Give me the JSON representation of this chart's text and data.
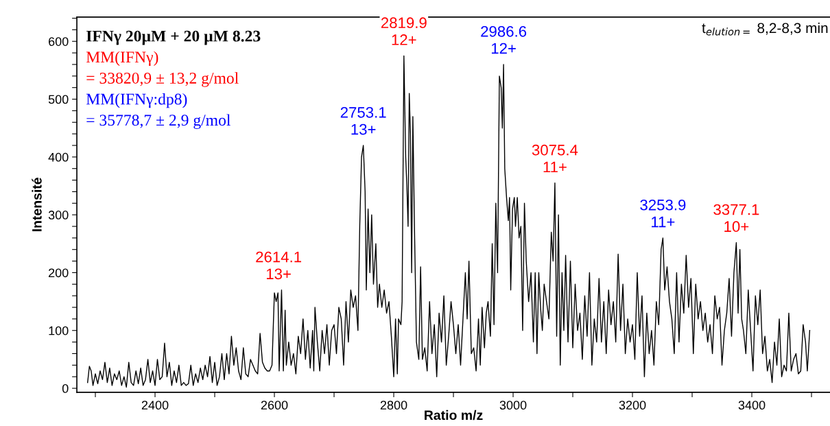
{
  "chart_data": {
    "type": "line",
    "xlabel": "Ratio m/z",
    "ylabel": "Intensité",
    "x": [
      2287,
      2290,
      2293,
      2296,
      2300,
      2304,
      2308,
      2312,
      2316,
      2320,
      2324,
      2328,
      2332,
      2336,
      2340,
      2344,
      2348,
      2352,
      2356,
      2360,
      2364,
      2368,
      2372,
      2376,
      2380,
      2384,
      2388,
      2392,
      2396,
      2400,
      2404,
      2408,
      2412,
      2416,
      2420,
      2424,
      2428,
      2432,
      2436,
      2440,
      2444,
      2448,
      2452,
      2456,
      2460,
      2464,
      2468,
      2472,
      2476,
      2480,
      2484,
      2488,
      2492,
      2496,
      2500,
      2504,
      2508,
      2512,
      2516,
      2520,
      2524,
      2528,
      2532,
      2536,
      2540,
      2544,
      2548,
      2552,
      2556,
      2560,
      2564,
      2568,
      2572,
      2576,
      2580,
      2584,
      2588,
      2592,
      2596,
      2600,
      2603,
      2606,
      2608,
      2612,
      2615,
      2618,
      2620,
      2624,
      2628,
      2632,
      2636,
      2640,
      2644,
      2648,
      2652,
      2656,
      2660,
      2664,
      2666,
      2668,
      2672,
      2676,
      2680,
      2684,
      2688,
      2692,
      2696,
      2700,
      2704,
      2708,
      2712,
      2716,
      2720,
      2724,
      2728,
      2732,
      2736,
      2740,
      2743,
      2746,
      2749,
      2752,
      2754,
      2757,
      2760,
      2763,
      2766,
      2770,
      2773,
      2776,
      2780,
      2784,
      2788,
      2792,
      2796,
      2800,
      2803,
      2806,
      2808,
      2812,
      2814,
      2817,
      2820,
      2822,
      2824,
      2826,
      2828,
      2830,
      2832,
      2835,
      2838,
      2842,
      2845,
      2848,
      2852,
      2856,
      2860,
      2864,
      2868,
      2872,
      2876,
      2880,
      2884,
      2888,
      2892,
      2896,
      2900,
      2904,
      2908,
      2912,
      2916,
      2920,
      2923,
      2926,
      2930,
      2934,
      2938,
      2942,
      2945,
      2948,
      2952,
      2955,
      2958,
      2962,
      2965,
      2968,
      2971,
      2974,
      2977,
      2980,
      2982,
      2984,
      2986,
      2989,
      2992,
      2994,
      2996,
      2999,
      3002,
      3004,
      3007,
      3010,
      3013,
      3016,
      3019,
      3022,
      3026,
      3030,
      3034,
      3037,
      3040,
      3043,
      3046,
      3049,
      3052,
      3056,
      3060,
      3064,
      3067,
      3070,
      3073,
      3076,
      3079,
      3082,
      3085,
      3088,
      3092,
      3096,
      3100,
      3104,
      3108,
      3112,
      3116,
      3120,
      3124,
      3128,
      3132,
      3136,
      3140,
      3144,
      3148,
      3152,
      3156,
      3160,
      3164,
      3168,
      3172,
      3176,
      3180,
      3184,
      3188,
      3192,
      3196,
      3200,
      3204,
      3208,
      3212,
      3216,
      3220,
      3224,
      3228,
      3232,
      3236,
      3240,
      3244,
      3248,
      3251,
      3254,
      3258,
      3262,
      3266,
      3270,
      3274,
      3278,
      3282,
      3286,
      3290,
      3294,
      3298,
      3302,
      3306,
      3310,
      3314,
      3318,
      3322,
      3326,
      3330,
      3334,
      3338,
      3342,
      3346,
      3350,
      3354,
      3358,
      3362,
      3366,
      3370,
      3374,
      3377,
      3380,
      3383,
      3386,
      3390,
      3394,
      3398,
      3402,
      3406,
      3410,
      3414,
      3418,
      3422,
      3426,
      3430,
      3434,
      3438,
      3442,
      3446,
      3450,
      3454,
      3458,
      3462,
      3466,
      3470,
      3474,
      3478,
      3482,
      3486,
      3490,
      3493,
      3497
    ],
    "series": [
      {
        "color": "#000000",
        "values": [
          10,
          38,
          30,
          5,
          25,
          8,
          30,
          15,
          45,
          10,
          35,
          5,
          25,
          15,
          30,
          5,
          20,
          2,
          45,
          10,
          5,
          30,
          8,
          35,
          5,
          15,
          50,
          10,
          30,
          5,
          50,
          15,
          20,
          78,
          20,
          45,
          5,
          30,
          10,
          40,
          5,
          10,
          5,
          8,
          40,
          5,
          25,
          10,
          35,
          15,
          40,
          20,
          55,
          10,
          45,
          5,
          20,
          60,
          15,
          60,
          25,
          90,
          40,
          70,
          30,
          15,
          70,
          25,
          20,
          50,
          40,
          30,
          25,
          95,
          45,
          35,
          30,
          30,
          40,
          165,
          150,
          165,
          30,
          170,
          30,
          135,
          40,
          80,
          40,
          60,
          25,
          90,
          60,
          120,
          50,
          100,
          35,
          100,
          30,
          140,
          80,
          30,
          100,
          60,
          110,
          40,
          100,
          110,
          60,
          140,
          120,
          40,
          150,
          80,
          170,
          140,
          160,
          100,
          280,
          400,
          420,
          340,
          170,
          310,
          200,
          300,
          180,
          250,
          140,
          180,
          140,
          170,
          130,
          150,
          90,
          20,
          120,
          25,
          120,
          110,
          150,
          575,
          400,
          350,
          280,
          510,
          440,
          200,
          470,
          260,
          80,
          50,
          210,
          50,
          70,
          30,
          150,
          60,
          110,
          20,
          130,
          80,
          160,
          40,
          90,
          150,
          110,
          60,
          110,
          40,
          120,
          200,
          120,
          220,
          60,
          70,
          30,
          120,
          40,
          140,
          70,
          130,
          150,
          90,
          250,
          110,
          320,
          200,
          540,
          520,
          450,
          560,
          380,
          330,
          290,
          330,
          170,
          310,
          330,
          280,
          330,
          260,
          280,
          100,
          320,
          220,
          150,
          200,
          80,
          200,
          60,
          200,
          140,
          100,
          180,
          150,
          120,
          270,
          220,
          355,
          90,
          300,
          40,
          200,
          100,
          230,
          80,
          220,
          70,
          180,
          100,
          130,
          50,
          160,
          90,
          200,
          40,
          120,
          80,
          190,
          80,
          150,
          60,
          170,
          110,
          150,
          80,
          232,
          100,
          180,
          60,
          120,
          80,
          110,
          50,
          200,
          90,
          160,
          20,
          130,
          60,
          100,
          40,
          150,
          110,
          240,
          260,
          170,
          210,
          150,
          120,
          60,
          200,
          80,
          180,
          130,
          230,
          140,
          190,
          60,
          180,
          120,
          150,
          100,
          130,
          80,
          110,
          60,
          160,
          120,
          140,
          40,
          100,
          130,
          190,
          90,
          200,
          252,
          130,
          240,
          120,
          100,
          60,
          170,
          100,
          30,
          160,
          110,
          170,
          60,
          90,
          30,
          50,
          10,
          80,
          40,
          120,
          20,
          40,
          30,
          130,
          30,
          50,
          60,
          25,
          30,
          110,
          80,
          30,
          100
        ]
      }
    ],
    "xlim": [
      2269,
      3531
    ],
    "ylim": [
      -7,
      642
    ],
    "xticks": [
      {
        "value": 2300,
        "label": null
      },
      2400,
      {
        "value": 2500,
        "label": null
      },
      2600,
      {
        "value": 2700,
        "label": null
      },
      2800,
      {
        "value": 2900,
        "label": null
      },
      3000,
      {
        "value": 3100,
        "label": null
      },
      3200,
      {
        "value": 3300,
        "label": null
      },
      3400,
      {
        "value": 3500,
        "label": null
      }
    ],
    "yticks": [
      0,
      {
        "value": 20,
        "label": null
      },
      {
        "value": 40,
        "label": null
      },
      {
        "value": 60,
        "label": null
      },
      {
        "value": 80,
        "label": null
      },
      100,
      {
        "value": 120,
        "label": null
      },
      {
        "value": 140,
        "label": null
      },
      {
        "value": 160,
        "label": null
      },
      {
        "value": 180,
        "label": null
      },
      200,
      {
        "value": 220,
        "label": null
      },
      {
        "value": 240,
        "label": null
      },
      {
        "value": 260,
        "label": null
      },
      {
        "value": 280,
        "label": null
      },
      300,
      {
        "value": 320,
        "label": null
      },
      {
        "value": 340,
        "label": null
      },
      {
        "value": 360,
        "label": null
      },
      {
        "value": 380,
        "label": null
      },
      400,
      {
        "value": 420,
        "label": null
      },
      {
        "value": 440,
        "label": null
      },
      {
        "value": 460,
        "label": null
      },
      {
        "value": 480,
        "label": null
      },
      500,
      {
        "value": 520,
        "label": null
      },
      {
        "value": 540,
        "label": null
      },
      {
        "value": 560,
        "label": null
      },
      {
        "value": 580,
        "label": null
      },
      600,
      {
        "value": 620,
        "label": null
      },
      {
        "value": 640,
        "label": null
      }
    ],
    "grid": false,
    "marker": "none",
    "line_style": "solid",
    "annotations": [
      "IFNγ 20µM + 20 µM 8.23",
      "MM(IFNγ)",
      "= 33820,9 ± 13,2 g/mol",
      "MM(IFNγ:dp8)",
      "= 35778,7 ± 2,9 g/mol",
      "t$_{elution=}$ 8,2-8,3 min",
      {
        "text": "2614.1\n13+",
        "x": 2607,
        "y": 170
      },
      {
        "text": "2753.1\n13+",
        "x": 2749,
        "y": 420
      },
      {
        "text": "2819.9\n12+",
        "x": 2817,
        "y": 575
      },
      {
        "text": "2986.6\n12+",
        "x": 2984,
        "y": 560
      },
      {
        "text": "3075.4\n11+",
        "x": 3070,
        "y": 355
      },
      {
        "text": "3253.9\n11+",
        "x": 3251,
        "y": 260
      },
      {
        "text": "3377.1\n10+",
        "x": 3374,
        "y": 252
      }
    ]
  }
}
